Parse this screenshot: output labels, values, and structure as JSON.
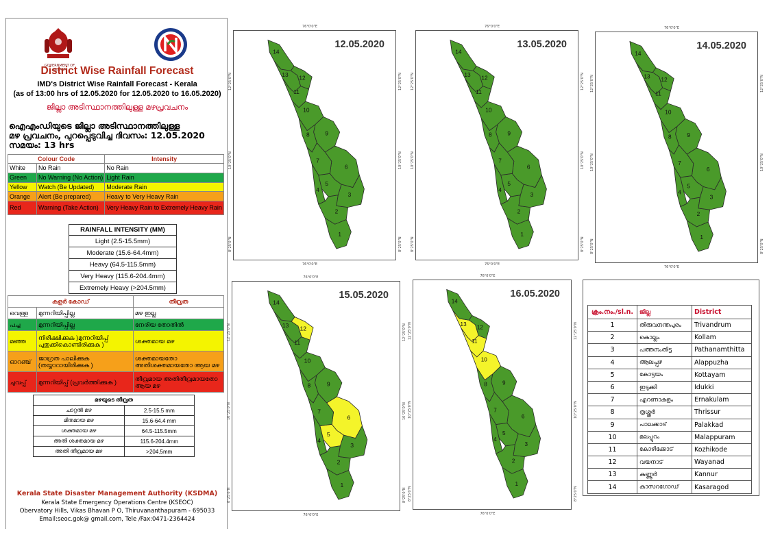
{
  "header": {
    "logo_caption": "GOVERNMENT OF KERALA",
    "title": "District Wise Rainfall Forecast",
    "subtitle1": "IMD's District Wise Rainfall Forecast - Kerala",
    "subtitle2": "(as of 13:00 hrs of 12.05.2020  for 12.05.2020  to 16.05.2020)",
    "title_ml": "ജില്ലാ അടിസ്ഥാനത്തിലുള്ള മഴപ്രവചനം",
    "ml_line1": "ഐഎംഡിയുടെ ജില്ലാ  അടിസ്ഥാനത്തിലുള്ള",
    "ml_line2": "മഴ പ്രവചനം, പുറപ്പെടുവിച്ച  ദിവസം: 12.05.2020",
    "ml_line3": "സമയം: 13 hrs"
  },
  "colour_code": {
    "col1": "Colour Code",
    "col2": "Intensity",
    "rows": [
      {
        "colour": "White",
        "meaning": "No Rain",
        "intensity": "No Rain",
        "bg": "#ffffff"
      },
      {
        "colour": "Green",
        "meaning": "No Warning (No Action)",
        "intensity": "Light Rain",
        "bg": "#1fa84a"
      },
      {
        "colour": "Yellow",
        "meaning": "Watch (Be Updated)",
        "intensity": "Moderate Rain",
        "bg": "#f4f400"
      },
      {
        "colour": "Orange",
        "meaning": "Alert (Be prepared)",
        "intensity": "Heavy to Very Heavy Rain",
        "bg": "#f6a01a"
      },
      {
        "colour": "Red",
        "meaning": "Warning (Take Action)",
        "intensity": "Very Heavy Rain to Extremely Heavy Rain",
        "bg": "#e8261b"
      }
    ]
  },
  "rainfall_intensity": {
    "title": "RAINFALL INTENSITY (MM)",
    "rows": [
      "Light (2.5-15.5mm)",
      "Moderate (15.6-64.4mm)",
      "Heavy (64.5-115.5mm)",
      "Very Heavy (115.6-204.4mm)",
      "Extremely Heavy (>204.5mm)"
    ]
  },
  "colour_code_ml": {
    "col1": "കളർ കോഡ്",
    "col2": "തീവ്രത",
    "rows": [
      {
        "colour": "വെള്ള",
        "meaning": "മുന്നറിയിപ്പില്ല",
        "intensity": "മഴ ഇല്ല",
        "bg": "#ffffff"
      },
      {
        "colour": "പച്ച",
        "meaning": "മുന്നറിയിപ്പില്ല",
        "intensity": "നേരിയ തോതിൽ",
        "bg": "#1fa84a"
      },
      {
        "colour": "മഞ്ഞ",
        "meaning": "നിരീക്ഷിക്കുക )മുന്നറിയിപ്പ് പുതുക്കികൊണ്ടിരിക്കുക )",
        "intensity": "ശക്തമായ മഴ",
        "bg": "#f4f400"
      },
      {
        "colour": "ഓറഞ്ച്",
        "meaning": "ജാഗ്രത പാലിക്കുക (തയ്യാറായിരിക്കുക )",
        "intensity": "ശക്തമായതോ അതിശക്തമായതോ ആയ മഴ",
        "bg": "#f6a01a"
      },
      {
        "colour": "ചുവപ്പ്",
        "meaning": "മുന്നറിയിപ്പ് (പ്രവർത്തിക്കുക )",
        "intensity": "തീവ്രമായ അതിതീവ്രമായതോ ആയ മഴ",
        "bg": "#e8261b"
      }
    ]
  },
  "rainfall_intensity_ml": {
    "title": "മഴയുടെ  തീവ്രത",
    "rows": [
      {
        "label": "ചാറ്റൽ  മഴ",
        "value": "2.5-15.5 mm"
      },
      {
        "label": "മിതമായ  മഴ",
        "value": "15.6-64.4 mm"
      },
      {
        "label": "ശക്തമായ  മഴ",
        "value": "64.5-115.5mm"
      },
      {
        "label": "അതി ശക്തമായ  മഴ",
        "value": "115.6-204.4mm"
      },
      {
        "label": "അതി തീവ്രമായ മഴ",
        "value": ">204.5mm"
      }
    ]
  },
  "footer": {
    "org": "Kerala State Disaster Management Authority (KSDMA)",
    "centre": "Kerala State Emergency Operations Centre (KSEOC)",
    "address": "Obervatory Hills, Vikas Bhavan P O, Thiruvananthapuram - 695033",
    "contact": "Email:seoc.gok@ gmail.com, Tele /Fax:0471-2364424"
  },
  "colors": {
    "green": "#4a9a2a",
    "yellow": "#f4f42a",
    "outline": "#2b2b2b"
  },
  "map_coords": {
    "lon_top": "76°0'0\"E",
    "lat_n1": "12°25'0\"N",
    "lat_n2": "10°25'0\"N",
    "lat_n3": "8°25'0\"N"
  },
  "maps": [
    {
      "date": "12.05.2020",
      "warnings": {
        "1": "green",
        "2": "green",
        "3": "green",
        "4": "green",
        "5": "green",
        "6": "green",
        "7": "green",
        "8": "green",
        "9": "green",
        "10": "green",
        "11": "green",
        "12": "green",
        "13": "green",
        "14": "green"
      }
    },
    {
      "date": "13.05.2020",
      "warnings": {
        "1": "green",
        "2": "green",
        "3": "green",
        "4": "green",
        "5": "green",
        "6": "green",
        "7": "green",
        "8": "green",
        "9": "green",
        "10": "green",
        "11": "green",
        "12": "green",
        "13": "green",
        "14": "green"
      }
    },
    {
      "date": "14.05.2020",
      "warnings": {
        "1": "green",
        "2": "green",
        "3": "green",
        "4": "green",
        "5": "green",
        "6": "green",
        "7": "green",
        "8": "green",
        "9": "green",
        "10": "green",
        "11": "green",
        "12": "green",
        "13": "green",
        "14": "green"
      }
    },
    {
      "date": "15.05.2020",
      "warnings": {
        "1": "green",
        "2": "green",
        "3": "green",
        "4": "green",
        "5": "yellow",
        "6": "yellow",
        "7": "green",
        "8": "green",
        "9": "green",
        "10": "green",
        "11": "green",
        "12": "yellow",
        "13": "green",
        "14": "green"
      }
    },
    {
      "date": "16.05.2020",
      "warnings": {
        "1": "green",
        "2": "green",
        "3": "green",
        "4": "green",
        "5": "green",
        "6": "green",
        "7": "green",
        "8": "green",
        "9": "green",
        "10": "yellow",
        "11": "yellow",
        "12": "green",
        "13": "yellow",
        "14": "green"
      }
    }
  ],
  "districts": {
    "headers": [
      "ക്രം.നം./sl.n.",
      "ജില്ല",
      "District"
    ],
    "rows": [
      {
        "sn": "1",
        "ml": "തിരുവനന്തപുരം",
        "en": "Trivandrum"
      },
      {
        "sn": "2",
        "ml": "കൊല്ലം",
        "en": "Kollam"
      },
      {
        "sn": "3",
        "ml": "പത്തനംതിട്ട",
        "en": "Pathanamthitta"
      },
      {
        "sn": "4",
        "ml": "ആലപ്പുഴ",
        "en": "Alappuzha"
      },
      {
        "sn": "5",
        "ml": "കോട്ടയം",
        "en": "Kottayam"
      },
      {
        "sn": "6",
        "ml": "ഇടുക്കി",
        "en": "Idukki"
      },
      {
        "sn": "7",
        "ml": "എറണാകുളം",
        "en": "Ernakulam"
      },
      {
        "sn": "8",
        "ml": "തൃശ്ശൂർ",
        "en": "Thrissur"
      },
      {
        "sn": "9",
        "ml": "പാലക്കാട്",
        "en": "Palakkad"
      },
      {
        "sn": "10",
        "ml": "മലപ്പുറം",
        "en": "Malappuram"
      },
      {
        "sn": "11",
        "ml": "കോഴിക്കോട്",
        "en": "Kozhikode"
      },
      {
        "sn": "12",
        "ml": "വയനാട്",
        "en": "Wayanad"
      },
      {
        "sn": "13",
        "ml": "കണ്ണൂർ",
        "en": "Kannur"
      },
      {
        "sn": "14",
        "ml": "കാസറഗോഡ്",
        "en": "Kasaragod"
      }
    ]
  }
}
